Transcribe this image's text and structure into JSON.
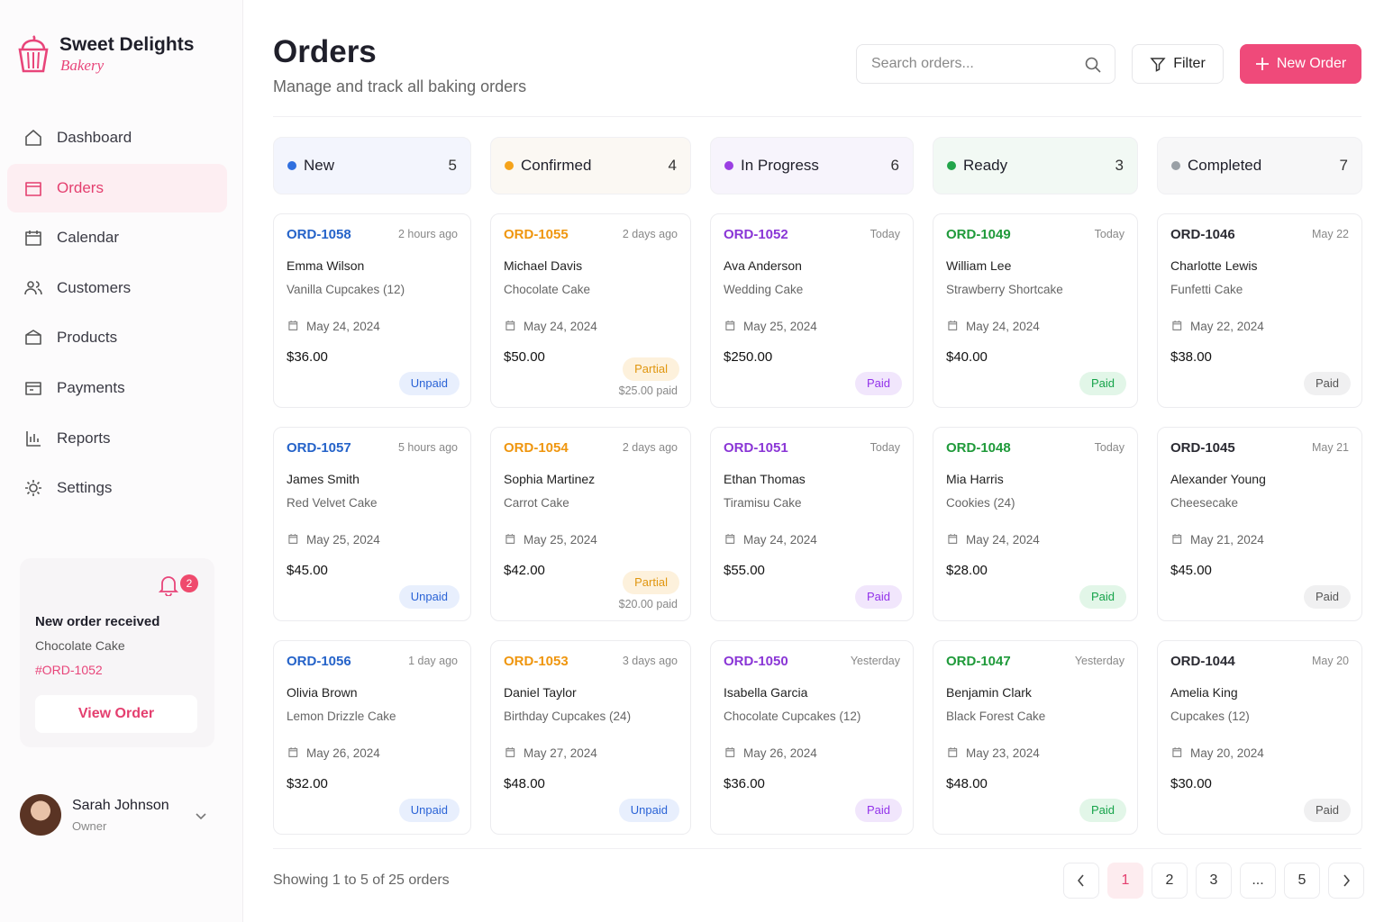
{
  "brand": {
    "name": "Sweet Delights",
    "tagline": "Bakery"
  },
  "nav": [
    {
      "label": "Dashboard"
    },
    {
      "label": "Orders",
      "active": true
    },
    {
      "label": "Calendar"
    },
    {
      "label": "Customers"
    },
    {
      "label": "Products"
    },
    {
      "label": "Payments"
    },
    {
      "label": "Reports"
    },
    {
      "label": "Settings"
    }
  ],
  "notification": {
    "count": 2,
    "title": "New order received",
    "item": "Chocolate Cake",
    "order": "#ORD-1052",
    "action": "View Order"
  },
  "user": {
    "name": "Sarah Johnson",
    "role": "Owner"
  },
  "header": {
    "title": "Orders",
    "subtitle": "Manage and track all baking orders",
    "search_placeholder": "Search orders...",
    "filter": "Filter",
    "new_order": "New Order"
  },
  "columns": [
    {
      "name": "New",
      "count": 5,
      "color": "#2f6fdf",
      "id_color": "#2563c9",
      "tint": "#f3f5fd",
      "orders": [
        {
          "id": "ORD-1058",
          "time": "2 hours ago",
          "customer": "Emma Wilson",
          "product": "Vanilla Cupcakes (12)",
          "date": "May 24, 2024",
          "total": "$36.00",
          "status": "Unpaid"
        },
        {
          "id": "ORD-1057",
          "time": "5 hours ago",
          "customer": "James Smith",
          "product": "Red Velvet Cake",
          "date": "May 25, 2024",
          "total": "$45.00",
          "status": "Unpaid"
        },
        {
          "id": "ORD-1056",
          "time": "1 day ago",
          "customer": "Olivia Brown",
          "product": "Lemon Drizzle Cake",
          "date": "May 26, 2024",
          "total": "$32.00",
          "status": "Unpaid"
        }
      ]
    },
    {
      "name": "Confirmed",
      "count": 4,
      "color": "#f5a31a",
      "id_color": "#ef960f",
      "tint": "#fbf8f3",
      "orders": [
        {
          "id": "ORD-1055",
          "time": "2 days ago",
          "customer": "Michael Davis",
          "product": "Chocolate Cake",
          "date": "May 24, 2024",
          "total": "$50.00",
          "status": "Partial",
          "paid_note": "$25.00 paid"
        },
        {
          "id": "ORD-1054",
          "time": "2 days ago",
          "customer": "Sophia Martinez",
          "product": "Carrot Cake",
          "date": "May 25, 2024",
          "total": "$42.00",
          "status": "Partial",
          "paid_note": "$20.00 paid"
        },
        {
          "id": "ORD-1053",
          "time": "3 days ago",
          "customer": "Daniel Taylor",
          "product": "Birthday Cupcakes (24)",
          "date": "May 27, 2024",
          "total": "$48.00",
          "status": "Unpaid"
        }
      ]
    },
    {
      "name": "In Progress",
      "count": 6,
      "color": "#9b3fe3",
      "id_color": "#8a36d6",
      "tint": "#f7f4fc",
      "orders": [
        {
          "id": "ORD-1052",
          "time": "Today",
          "customer": "Ava Anderson",
          "product": "Wedding Cake",
          "date": "May 25, 2024",
          "total": "$250.00",
          "status": "Paid"
        },
        {
          "id": "ORD-1051",
          "time": "Today",
          "customer": "Ethan Thomas",
          "product": "Tiramisu Cake",
          "date": "May 24, 2024",
          "total": "$55.00",
          "status": "Paid"
        },
        {
          "id": "ORD-1050",
          "time": "Yesterday",
          "customer": "Isabella Garcia",
          "product": "Chocolate Cupcakes (12)",
          "date": "May 26, 2024",
          "total": "$36.00",
          "status": "Paid"
        }
      ]
    },
    {
      "name": "Ready",
      "count": 3,
      "color": "#22a54a",
      "id_color": "#1f9a3a",
      "tint": "#f2f9f4",
      "orders": [
        {
          "id": "ORD-1049",
          "time": "Today",
          "customer": "William Lee",
          "product": "Strawberry Shortcake",
          "date": "May 24, 2024",
          "total": "$40.00",
          "status": "Paid"
        },
        {
          "id": "ORD-1048",
          "time": "Today",
          "customer": "Mia Harris",
          "product": "Cookies (24)",
          "date": "May 24, 2024",
          "total": "$28.00",
          "status": "Paid"
        },
        {
          "id": "ORD-1047",
          "time": "Yesterday",
          "customer": "Benjamin Clark",
          "product": "Black Forest Cake",
          "date": "May 23, 2024",
          "total": "$48.00",
          "status": "Paid"
        }
      ]
    },
    {
      "name": "Completed",
      "count": 7,
      "color": "#9aa0a6",
      "id_color": "#2b2b33",
      "tint": "#f7f7f8",
      "orders": [
        {
          "id": "ORD-1046",
          "time": "May 22",
          "customer": "Charlotte Lewis",
          "product": "Funfetti Cake",
          "date": "May 22, 2024",
          "total": "$38.00",
          "status": "Paid"
        },
        {
          "id": "ORD-1045",
          "time": "May 21",
          "customer": "Alexander Young",
          "product": "Cheesecake",
          "date": "May 21, 2024",
          "total": "$45.00",
          "status": "Paid"
        },
        {
          "id": "ORD-1044",
          "time": "May 20",
          "customer": "Amelia King",
          "product": "Cupcakes (12)",
          "date": "May 20, 2024",
          "total": "$30.00",
          "status": "Paid"
        }
      ]
    }
  ],
  "pagination": {
    "summary": "Showing 1 to 5 of 25 orders",
    "pages": [
      1,
      2,
      3,
      "...",
      5
    ],
    "current": 1
  }
}
